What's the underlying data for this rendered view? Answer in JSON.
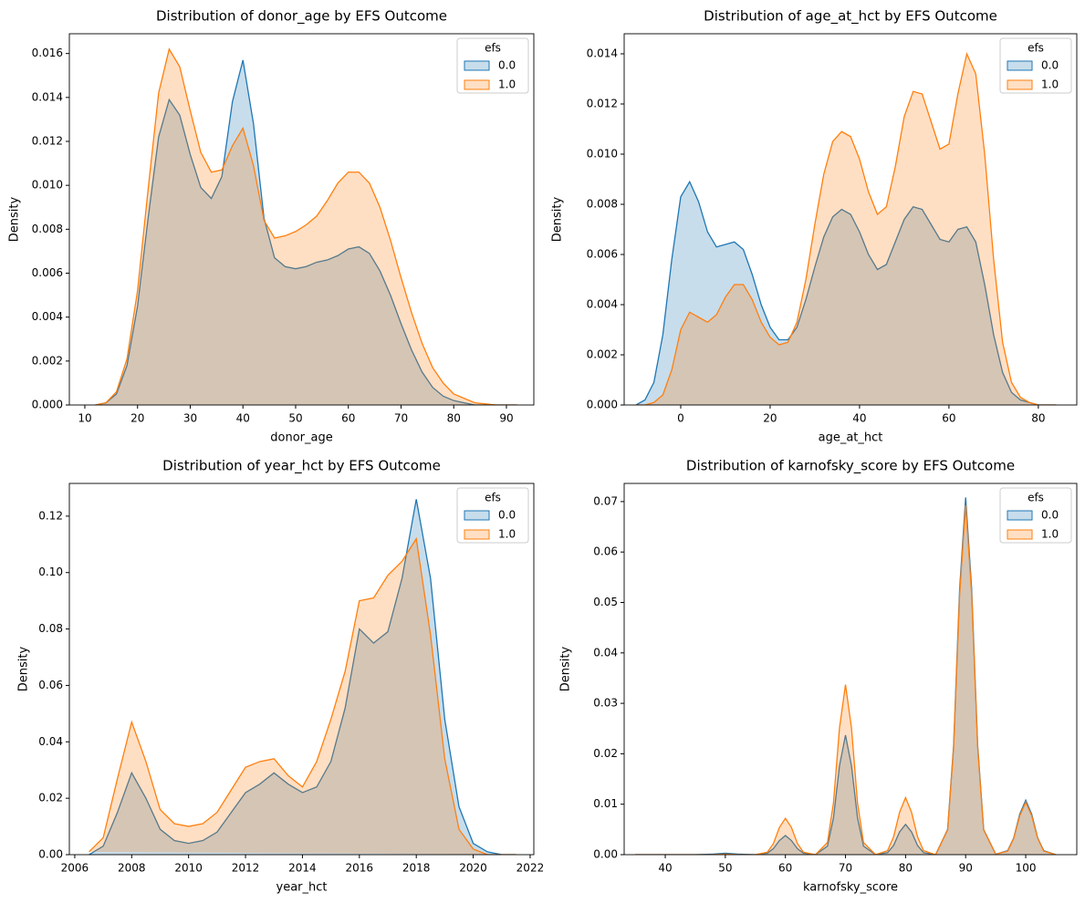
{
  "chart_data": [
    {
      "type": "area",
      "title": "Distribution of donor_age by EFS Outcome",
      "x_label": "donor_age",
      "y_label": "Density",
      "legend_title": "efs",
      "legend_position": "upper right",
      "x": [
        12,
        14,
        16,
        18,
        20,
        22,
        24,
        26,
        28,
        30,
        32,
        34,
        36,
        38,
        40,
        42,
        44,
        46,
        48,
        50,
        52,
        54,
        56,
        58,
        60,
        62,
        64,
        66,
        68,
        70,
        72,
        74,
        76,
        78,
        80,
        82,
        84,
        86,
        88,
        90,
        92
      ],
      "series": [
        {
          "name": "0.0",
          "color": "#1f77b4",
          "values": [
            0,
            0.0001,
            0.0005,
            0.0018,
            0.0045,
            0.0085,
            0.0122,
            0.0139,
            0.0132,
            0.0114,
            0.0099,
            0.0094,
            0.0104,
            0.0138,
            0.0157,
            0.0128,
            0.0085,
            0.0067,
            0.0063,
            0.0062,
            0.0063,
            0.0065,
            0.0066,
            0.0068,
            0.0071,
            0.0072,
            0.0069,
            0.0061,
            0.005,
            0.0037,
            0.0025,
            0.0015,
            0.0008,
            0.0004,
            0.0002,
            0.0001,
            0,
            0,
            0,
            0,
            0
          ]
        },
        {
          "name": "1.0",
          "color": "#ff7f0e",
          "values": [
            0,
            0.0001,
            0.0006,
            0.0021,
            0.0052,
            0.0098,
            0.0142,
            0.0162,
            0.0154,
            0.0134,
            0.0115,
            0.0106,
            0.0107,
            0.0118,
            0.0126,
            0.0109,
            0.0084,
            0.0076,
            0.0077,
            0.0079,
            0.0082,
            0.0086,
            0.0093,
            0.0101,
            0.0106,
            0.0106,
            0.0101,
            0.009,
            0.0075,
            0.0058,
            0.0042,
            0.0028,
            0.0017,
            0.001,
            0.0005,
            0.0003,
            0.0001,
            5e-05,
            0,
            0,
            0
          ]
        }
      ],
      "xlim": [
        7.06,
        95.2
      ],
      "ylim": [
        0,
        0.0169
      ],
      "xticks": [
        10,
        20,
        30,
        40,
        50,
        60,
        70,
        80,
        90
      ],
      "yticks": [
        {
          "value": 0,
          "label": "0.000"
        },
        {
          "value": 0.002,
          "label": "0.002"
        },
        {
          "value": 0.004,
          "label": "0.004"
        },
        {
          "value": 0.006,
          "label": "0.006"
        },
        {
          "value": 0.008,
          "label": "0.008"
        },
        {
          "value": 0.01,
          "label": "0.010"
        },
        {
          "value": 0.012,
          "label": "0.012"
        },
        {
          "value": 0.014,
          "label": "0.014"
        },
        {
          "value": 0.016,
          "label": "0.016"
        }
      ]
    },
    {
      "type": "area",
      "title": "Distribution of age_at_hct by EFS Outcome",
      "x_label": "age_at_hct",
      "y_label": "Density",
      "legend_title": "efs",
      "legend_position": "upper right",
      "x": [
        -10,
        -8,
        -6,
        -4,
        -2,
        0,
        2,
        4,
        6,
        8,
        10,
        12,
        14,
        16,
        18,
        20,
        22,
        24,
        26,
        28,
        30,
        32,
        34,
        36,
        38,
        40,
        42,
        44,
        46,
        48,
        50,
        52,
        54,
        56,
        58,
        60,
        62,
        64,
        66,
        68,
        70,
        72,
        74,
        76,
        78,
        80,
        82,
        84
      ],
      "series": [
        {
          "name": "0.0",
          "color": "#1f77b4",
          "values": [
            0,
            0.0002,
            0.0009,
            0.0028,
            0.0058,
            0.0083,
            0.0089,
            0.0081,
            0.0069,
            0.0063,
            0.0064,
            0.0065,
            0.0062,
            0.0052,
            0.004,
            0.0031,
            0.0026,
            0.0026,
            0.0031,
            0.0042,
            0.0055,
            0.0067,
            0.0075,
            0.0078,
            0.0076,
            0.0069,
            0.006,
            0.0054,
            0.0056,
            0.0065,
            0.0074,
            0.0079,
            0.0078,
            0.0072,
            0.0066,
            0.0065,
            0.007,
            0.0071,
            0.0065,
            0.0048,
            0.0028,
            0.0013,
            0.0005,
            0.0002,
            0.0001,
            0,
            0,
            0
          ]
        },
        {
          "name": "1.0",
          "color": "#ff7f0e",
          "values": [
            0,
            0,
            0.0001,
            0.0004,
            0.0014,
            0.003,
            0.0037,
            0.0035,
            0.0033,
            0.0036,
            0.0043,
            0.0048,
            0.0048,
            0.0042,
            0.0033,
            0.0027,
            0.0024,
            0.0025,
            0.0033,
            0.005,
            0.0072,
            0.0092,
            0.0105,
            0.0109,
            0.0107,
            0.0098,
            0.0085,
            0.0076,
            0.0079,
            0.0095,
            0.0115,
            0.0125,
            0.0124,
            0.0113,
            0.0102,
            0.0104,
            0.0124,
            0.014,
            0.0132,
            0.01,
            0.0058,
            0.0025,
            0.0009,
            0.0003,
            0.0001,
            0,
            0,
            0
          ]
        }
      ],
      "xlim": [
        -12.65,
        88.6
      ],
      "ylim": [
        0,
        0.0148
      ],
      "xticks": [
        0,
        20,
        40,
        60,
        80
      ],
      "yticks": [
        {
          "value": 0,
          "label": "0.000"
        },
        {
          "value": 0.002,
          "label": "0.002"
        },
        {
          "value": 0.004,
          "label": "0.004"
        },
        {
          "value": 0.006,
          "label": "0.006"
        },
        {
          "value": 0.008,
          "label": "0.008"
        },
        {
          "value": 0.01,
          "label": "0.010"
        },
        {
          "value": 0.012,
          "label": "0.012"
        },
        {
          "value": 0.014,
          "label": "0.014"
        }
      ]
    },
    {
      "type": "area",
      "title": "Distribution of year_hct by EFS Outcome",
      "x_label": "year_hct",
      "y_label": "Density",
      "legend_title": "efs",
      "legend_position": "upper right",
      "x": [
        2006.5,
        2007,
        2007.5,
        2008,
        2008.5,
        2009,
        2009.5,
        2010,
        2010.5,
        2011,
        2011.5,
        2012,
        2012.5,
        2013,
        2013.5,
        2014,
        2014.5,
        2015,
        2015.5,
        2016,
        2016.5,
        2017,
        2017.5,
        2018,
        2018.5,
        2019,
        2019.5,
        2020,
        2020.5,
        2021,
        2021.5
      ],
      "series": [
        {
          "name": "0.0",
          "color": "#1f77b4",
          "values": [
            0,
            0.003,
            0.015,
            0.029,
            0.02,
            0.009,
            0.005,
            0.004,
            0.005,
            0.008,
            0.015,
            0.022,
            0.025,
            0.029,
            0.025,
            0.022,
            0.024,
            0.033,
            0.052,
            0.08,
            0.075,
            0.079,
            0.098,
            0.126,
            0.098,
            0.048,
            0.017,
            0.004,
            0.001,
            0,
            0
          ]
        },
        {
          "name": "1.0",
          "color": "#ff7f0e",
          "values": [
            0.001,
            0.006,
            0.027,
            0.047,
            0.033,
            0.016,
            0.011,
            0.01,
            0.011,
            0.015,
            0.023,
            0.031,
            0.033,
            0.034,
            0.028,
            0.024,
            0.033,
            0.048,
            0.065,
            0.09,
            0.091,
            0.099,
            0.104,
            0.112,
            0.078,
            0.034,
            0.009,
            0.002,
            0,
            0,
            0
          ]
        }
      ],
      "xlim": [
        2005.81,
        2022.13
      ],
      "ylim": [
        0,
        0.1316
      ],
      "xticks": [
        2006,
        2008,
        2010,
        2012,
        2014,
        2016,
        2018,
        2020,
        2022
      ],
      "yticks": [
        {
          "value": 0,
          "label": "0.00"
        },
        {
          "value": 0.02,
          "label": "0.02"
        },
        {
          "value": 0.04,
          "label": "0.04"
        },
        {
          "value": 0.06,
          "label": "0.06"
        },
        {
          "value": 0.08,
          "label": "0.08"
        },
        {
          "value": 0.1,
          "label": "0.10"
        },
        {
          "value": 0.12,
          "label": "0.12"
        }
      ]
    },
    {
      "type": "area",
      "title": "Distribution of karnofsky_score by EFS Outcome",
      "x_label": "karnofsky_score",
      "y_label": "Density",
      "legend_title": "efs",
      "legend_position": "upper right",
      "x": [
        35,
        40,
        45,
        48,
        50,
        52,
        55,
        57,
        58,
        59,
        60,
        61,
        62,
        63,
        65,
        67,
        68,
        69,
        70,
        71,
        72,
        73,
        75,
        77,
        78,
        79,
        80,
        81,
        82,
        83,
        85,
        87,
        88,
        89,
        90,
        91,
        92,
        93,
        95,
        97,
        98,
        99,
        100,
        101,
        102,
        103,
        105
      ],
      "series": [
        {
          "name": "0.0",
          "color": "#1f77b4",
          "values": [
            0,
            0,
            0,
            0.0001,
            0.0003,
            0.0001,
            0,
            0.0003,
            0.0012,
            0.0028,
            0.0038,
            0.0028,
            0.0012,
            0.0003,
            0,
            0.0017,
            0.0073,
            0.0176,
            0.0237,
            0.0176,
            0.0073,
            0.0017,
            0,
            0.0004,
            0.0018,
            0.0045,
            0.006,
            0.0045,
            0.0018,
            0.0004,
            0,
            0.005,
            0.0217,
            0.0527,
            0.0708,
            0.0527,
            0.0217,
            0.005,
            0.0001,
            0.0008,
            0.0033,
            0.008,
            0.0108,
            0.008,
            0.0033,
            0.0008,
            0
          ]
        },
        {
          "name": "1.0",
          "color": "#ff7f0e",
          "values": [
            0,
            0,
            0,
            0,
            0.0001,
            0,
            0,
            0.0005,
            0.0022,
            0.0054,
            0.0072,
            0.0054,
            0.0022,
            0.0005,
            0,
            0.0024,
            0.0103,
            0.0251,
            0.0337,
            0.0251,
            0.0103,
            0.0024,
            0,
            0.0008,
            0.0035,
            0.0084,
            0.0113,
            0.0084,
            0.0035,
            0.0008,
            0,
            0.0049,
            0.0212,
            0.0516,
            0.0693,
            0.0516,
            0.0212,
            0.0049,
            0.0001,
            0.0007,
            0.0032,
            0.0077,
            0.0104,
            0.0077,
            0.0032,
            0.0007,
            0
          ]
        }
      ],
      "xlim": [
        33.16,
        108.5
      ],
      "ylim": [
        0,
        0.0736
      ],
      "xticks": [
        40,
        50,
        60,
        70,
        80,
        90,
        100
      ],
      "yticks": [
        {
          "value": 0,
          "label": "0.00"
        },
        {
          "value": 0.01,
          "label": "0.01"
        },
        {
          "value": 0.02,
          "label": "0.02"
        },
        {
          "value": 0.03,
          "label": "0.03"
        },
        {
          "value": 0.04,
          "label": "0.04"
        },
        {
          "value": 0.05,
          "label": "0.05"
        },
        {
          "value": 0.06,
          "label": "0.06"
        },
        {
          "value": 0.07,
          "label": "0.07"
        }
      ]
    }
  ]
}
